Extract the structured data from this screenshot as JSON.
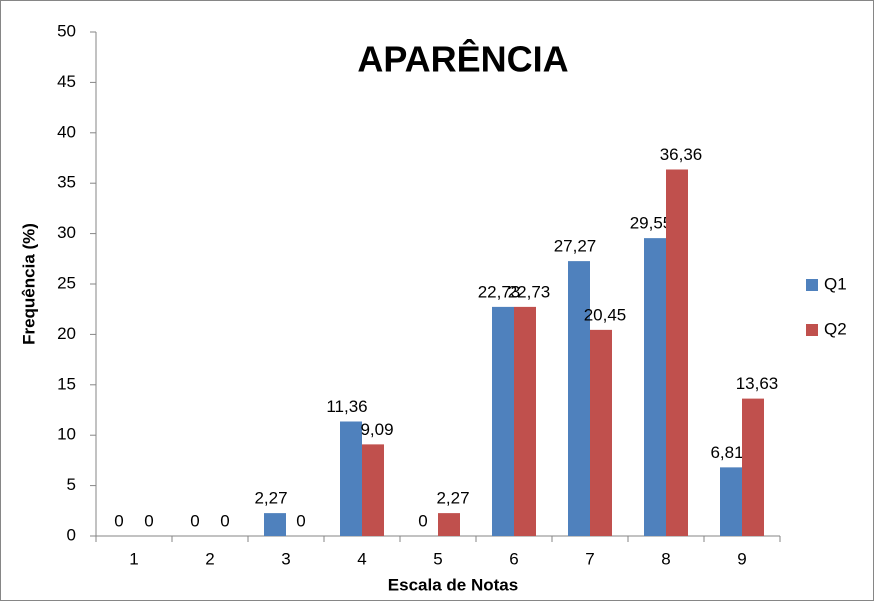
{
  "chart_data": {
    "type": "bar",
    "title": "APARÊNCIA",
    "x_label": "Escala de Notas",
    "y_label": "Frequência (%)",
    "categories": [
      "1",
      "2",
      "3",
      "4",
      "5",
      "6",
      "7",
      "8",
      "9"
    ],
    "series": [
      {
        "name": "Q1",
        "color": "#4f81bd",
        "values": [
          0,
          0,
          2.27,
          11.36,
          0,
          22.73,
          27.27,
          29.55,
          6.81
        ],
        "value_labels": [
          "0",
          "0",
          "2,27",
          "11,36",
          "0",
          "22,73",
          "27,27",
          "29,55",
          "6,81"
        ]
      },
      {
        "name": "Q2",
        "color": "#c0504d",
        "values": [
          0,
          0,
          0,
          9.09,
          2.27,
          22.73,
          20.45,
          36.36,
          13.63
        ],
        "value_labels": [
          "0",
          "0",
          "0",
          "9,09",
          "2,27",
          "22,73",
          "20,45",
          "36,36",
          "13,63"
        ]
      }
    ],
    "ylim": [
      0,
      50
    ],
    "yticks": [
      0,
      5,
      10,
      15,
      20,
      25,
      30,
      35,
      40,
      45,
      50
    ],
    "grid": false,
    "legend": "right"
  }
}
